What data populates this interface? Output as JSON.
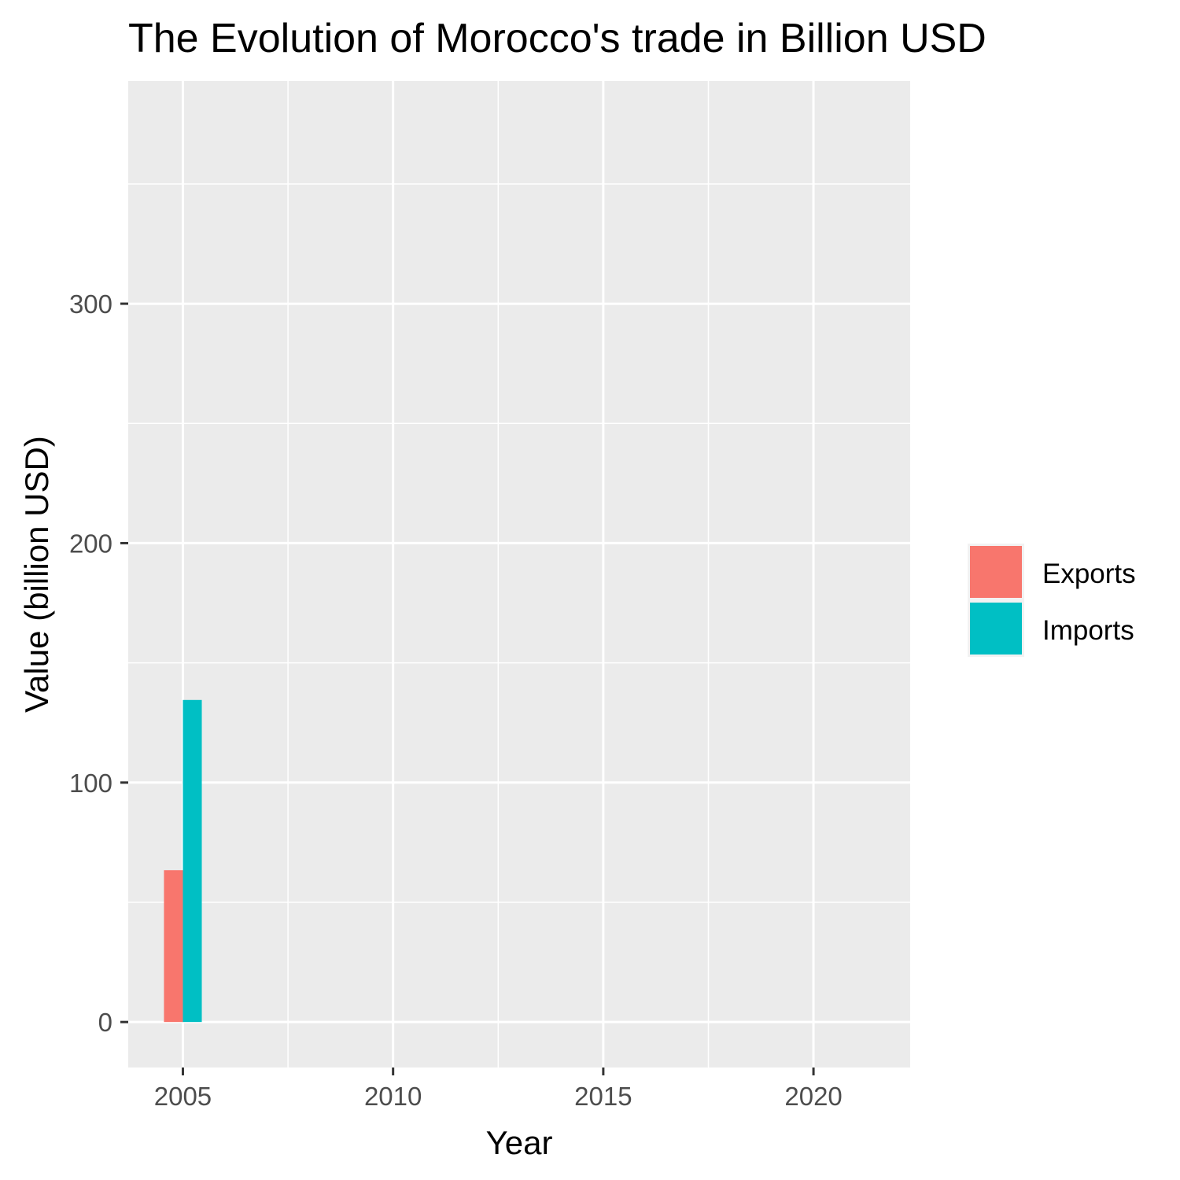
{
  "chart_data": {
    "type": "bar",
    "title": "The Evolution of Morocco's trade in Billion USD",
    "xlabel": "Year",
    "ylabel": "Value (billion USD)",
    "x": [
      2005
    ],
    "series": [
      {
        "name": "Exports",
        "values": [
          63.4
        ],
        "color": "#F8766D"
      },
      {
        "name": "Imports",
        "values": [
          134.5
        ],
        "color": "#00BFC4"
      }
    ],
    "xlim": [
      2003.7,
      2022.3
    ],
    "ylim": [
      -19,
      393
    ],
    "x_ticks": [
      2005,
      2010,
      2015,
      2020
    ],
    "x_tick_labels": [
      "2005",
      "2010",
      "2015",
      "2020"
    ],
    "y_ticks": [
      0,
      100,
      200,
      300
    ],
    "y_tick_labels": [
      "0",
      "100",
      "200",
      "300"
    ],
    "x_minor_ticks": [
      2007.5,
      2012.5,
      2017.5
    ],
    "y_minor_ticks": [
      50,
      150,
      250,
      350
    ],
    "grid": true,
    "legend": {
      "position": "right",
      "entries": [
        "Exports",
        "Imports"
      ]
    },
    "panel_background": "#EBEBEB",
    "grid_color": "#FFFFFF"
  }
}
